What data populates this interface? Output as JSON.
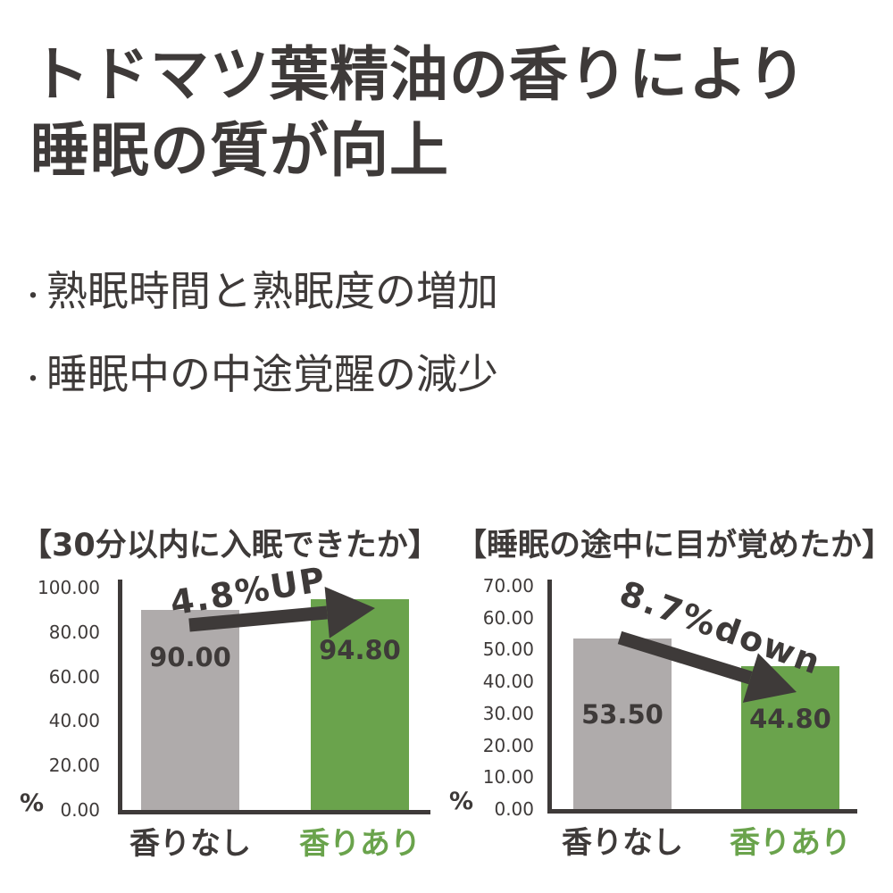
{
  "page": {
    "title_lines": [
      "トドマツ葉精油の香りにより",
      "睡眠の質が向上"
    ]
  },
  "bullets": {
    "dot": "・",
    "items": [
      "熟眠時間と熟眠度の増加",
      "睡眠中の中途覚醒の減少"
    ]
  },
  "colors": {
    "text": "#3e3a39",
    "axis": "#3e3a39",
    "arrow": "#3e3a39",
    "gray_bar": "#afabab",
    "green": "#6aa34c",
    "background": "#ffffff"
  },
  "chart_data": [
    {
      "type": "bar",
      "title": "【30分以内に入眠できたか】",
      "categories": [
        "香りなし",
        "香りあり"
      ],
      "values": [
        90.0,
        94.8
      ],
      "value_labels": [
        "90.00",
        "94.80"
      ],
      "series_colors": [
        "#afabab",
        "#6aa34c"
      ],
      "category_colors": [
        "#3e3a39",
        "#6aa34c"
      ],
      "ylabel": "%",
      "ylim": [
        0,
        100
      ],
      "ytick_step": 20,
      "yticks": [
        "0.00",
        "20.00",
        "40.00",
        "60.00",
        "80.00",
        "100.00"
      ],
      "grid": false,
      "legend": false,
      "annotation": {
        "label": "4.8%UP",
        "direction": "up"
      }
    },
    {
      "type": "bar",
      "title": "【睡眠の途中に目が覚めたか】",
      "categories": [
        "香りなし",
        "香りあり"
      ],
      "values": [
        53.5,
        44.8
      ],
      "value_labels": [
        "53.50",
        "44.80"
      ],
      "series_colors": [
        "#afabab",
        "#6aa34c"
      ],
      "category_colors": [
        "#3e3a39",
        "#6aa34c"
      ],
      "ylabel": "%",
      "ylim": [
        0,
        70
      ],
      "ytick_step": 10,
      "yticks": [
        "0.00",
        "10.00",
        "20.00",
        "30.00",
        "40.00",
        "50.00",
        "60.00",
        "70.00"
      ],
      "grid": false,
      "legend": false,
      "annotation": {
        "label": "8.7%down",
        "direction": "down"
      }
    }
  ]
}
